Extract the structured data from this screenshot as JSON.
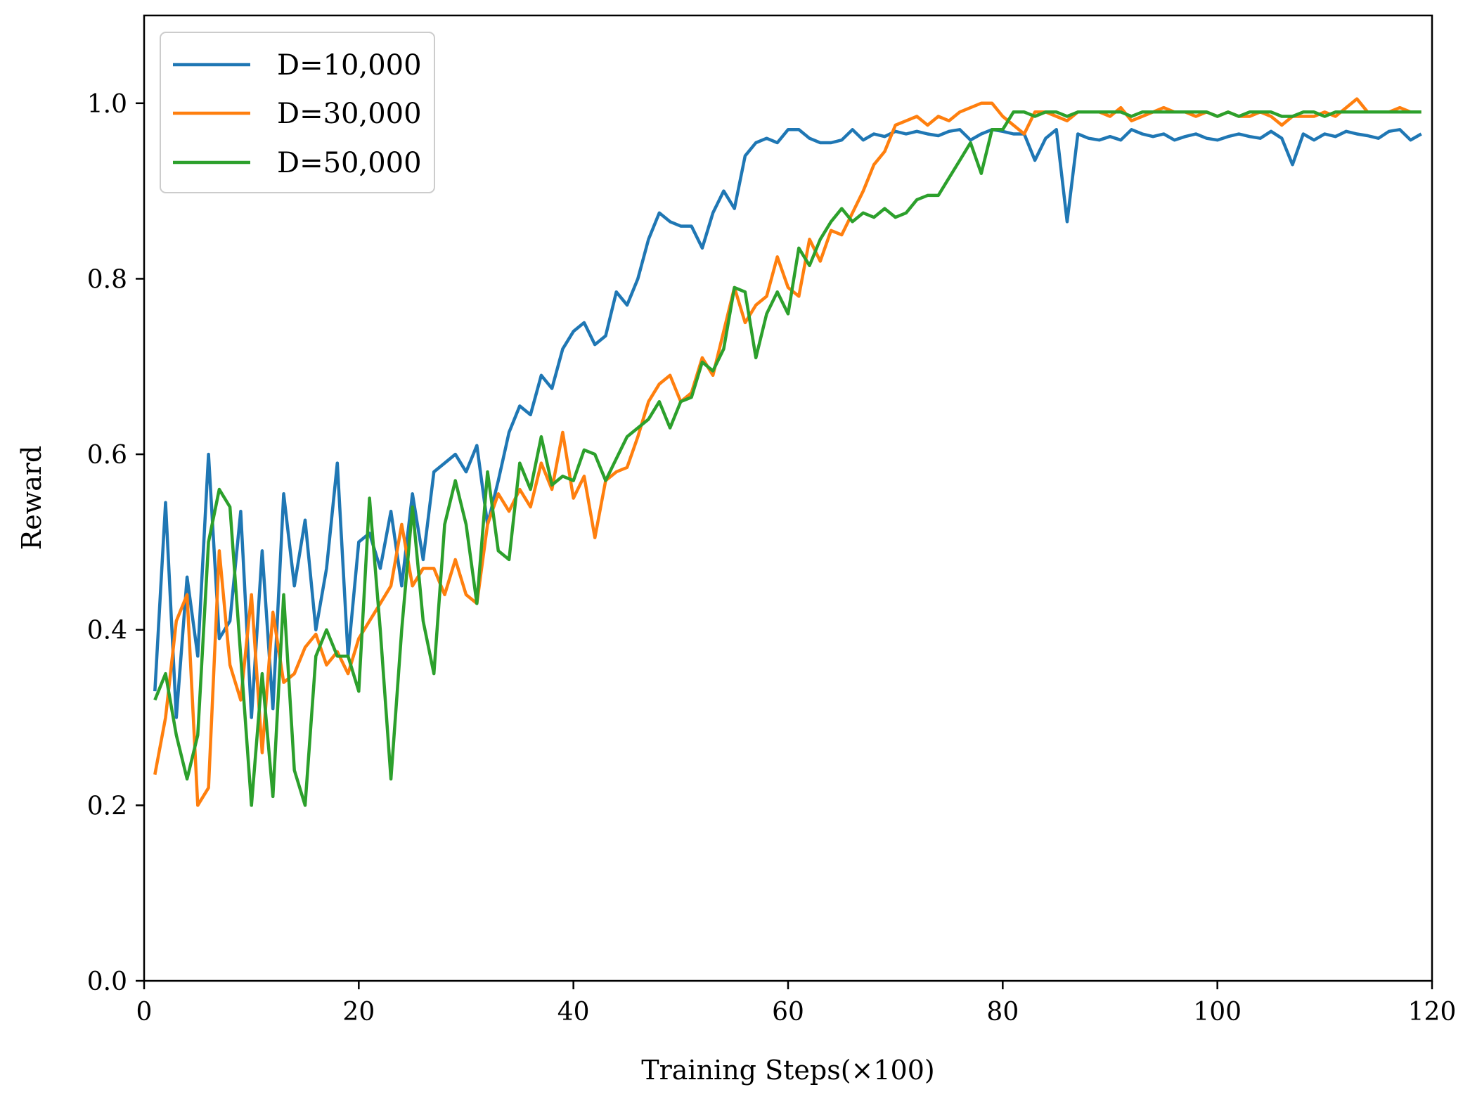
{
  "chart_data": {
    "type": "line",
    "title": "",
    "xlabel": "Training Steps(×100)",
    "ylabel": "Reward",
    "xlim": [
      0,
      120
    ],
    "ylim": [
      0,
      1.1
    ],
    "xticks": [
      0,
      20,
      40,
      60,
      80,
      100,
      120
    ],
    "xtick_labels": [
      "0",
      "20",
      "40",
      "60",
      "80",
      "100",
      "120"
    ],
    "yticks": [
      0.0,
      0.2,
      0.4,
      0.6,
      0.8,
      1.0
    ],
    "ytick_labels": [
      "0.0",
      "0.2",
      "0.4",
      "0.6",
      "0.8",
      "1.0"
    ],
    "grid": false,
    "legend_position": "top-left",
    "x": [
      1,
      2,
      3,
      4,
      5,
      6,
      7,
      8,
      9,
      10,
      11,
      12,
      13,
      14,
      15,
      16,
      17,
      18,
      19,
      20,
      21,
      22,
      23,
      24,
      25,
      26,
      27,
      28,
      29,
      30,
      31,
      32,
      33,
      34,
      35,
      36,
      37,
      38,
      39,
      40,
      41,
      42,
      43,
      44,
      45,
      46,
      47,
      48,
      49,
      50,
      51,
      52,
      53,
      54,
      55,
      56,
      57,
      58,
      59,
      60,
      61,
      62,
      63,
      64,
      65,
      66,
      67,
      68,
      69,
      70,
      71,
      72,
      73,
      74,
      75,
      76,
      77,
      78,
      79,
      80,
      81,
      82,
      83,
      84,
      85,
      86,
      87,
      88,
      89,
      90,
      91,
      92,
      93,
      94,
      95,
      96,
      97,
      98,
      99,
      100,
      101,
      102,
      103,
      104,
      105,
      106,
      107,
      108,
      109,
      110,
      111,
      112,
      113,
      114,
      115,
      116,
      117,
      118,
      119
    ],
    "series": [
      {
        "name": "D=10,000",
        "color": "#1f77b4",
        "values": [
          0.33,
          0.545,
          0.3,
          0.46,
          0.37,
          0.6,
          0.39,
          0.41,
          0.535,
          0.3,
          0.49,
          0.31,
          0.555,
          0.45,
          0.525,
          0.4,
          0.47,
          0.59,
          0.37,
          0.5,
          0.51,
          0.47,
          0.535,
          0.45,
          0.555,
          0.48,
          0.58,
          0.59,
          0.6,
          0.58,
          0.61,
          0.52,
          0.57,
          0.625,
          0.655,
          0.645,
          0.69,
          0.675,
          0.72,
          0.74,
          0.75,
          0.725,
          0.735,
          0.785,
          0.77,
          0.8,
          0.845,
          0.875,
          0.865,
          0.86,
          0.86,
          0.835,
          0.875,
          0.9,
          0.88,
          0.94,
          0.955,
          0.96,
          0.955,
          0.97,
          0.97,
          0.96,
          0.955,
          0.955,
          0.958,
          0.97,
          0.958,
          0.965,
          0.962,
          0.968,
          0.965,
          0.968,
          0.965,
          0.963,
          0.968,
          0.97,
          0.958,
          0.965,
          0.97,
          0.968,
          0.965,
          0.965,
          0.935,
          0.96,
          0.97,
          0.865,
          0.965,
          0.96,
          0.958,
          0.962,
          0.958,
          0.97,
          0.965,
          0.962,
          0.965,
          0.958,
          0.962,
          0.965,
          0.96,
          0.958,
          0.962,
          0.965,
          0.962,
          0.96,
          0.968,
          0.96,
          0.93,
          0.965,
          0.958,
          0.965,
          0.962,
          0.968,
          0.965,
          0.963,
          0.96,
          0.968,
          0.97,
          0.958,
          0.965
        ]
      },
      {
        "name": "D=30,000",
        "color": "#ff7f0e",
        "values": [
          0.235,
          0.3,
          0.41,
          0.44,
          0.2,
          0.22,
          0.49,
          0.36,
          0.32,
          0.44,
          0.26,
          0.42,
          0.34,
          0.35,
          0.38,
          0.395,
          0.36,
          0.375,
          0.35,
          0.39,
          0.41,
          0.43,
          0.45,
          0.52,
          0.45,
          0.47,
          0.47,
          0.44,
          0.48,
          0.44,
          0.43,
          0.52,
          0.555,
          0.535,
          0.56,
          0.54,
          0.59,
          0.56,
          0.625,
          0.55,
          0.575,
          0.505,
          0.57,
          0.58,
          0.585,
          0.62,
          0.66,
          0.68,
          0.69,
          0.66,
          0.67,
          0.71,
          0.69,
          0.74,
          0.79,
          0.75,
          0.77,
          0.78,
          0.825,
          0.79,
          0.78,
          0.845,
          0.82,
          0.855,
          0.85,
          0.875,
          0.9,
          0.93,
          0.945,
          0.975,
          0.98,
          0.985,
          0.975,
          0.985,
          0.98,
          0.99,
          0.995,
          1.0,
          1.0,
          0.985,
          0.975,
          0.965,
          0.99,
          0.99,
          0.985,
          0.98,
          0.99,
          0.99,
          0.99,
          0.985,
          0.995,
          0.98,
          0.985,
          0.99,
          0.995,
          0.99,
          0.99,
          0.985,
          0.99,
          0.985,
          0.99,
          0.985,
          0.985,
          0.99,
          0.985,
          0.975,
          0.985,
          0.985,
          0.985,
          0.99,
          0.985,
          0.995,
          1.005,
          0.99,
          0.99,
          0.99,
          0.995,
          0.99,
          0.99
        ]
      },
      {
        "name": "D=50,000",
        "color": "#2ca02c",
        "values": [
          0.32,
          0.35,
          0.28,
          0.23,
          0.28,
          0.5,
          0.56,
          0.54,
          0.37,
          0.2,
          0.35,
          0.21,
          0.44,
          0.24,
          0.2,
          0.37,
          0.4,
          0.37,
          0.37,
          0.33,
          0.55,
          0.4,
          0.23,
          0.4,
          0.54,
          0.41,
          0.35,
          0.52,
          0.57,
          0.52,
          0.43,
          0.58,
          0.49,
          0.48,
          0.59,
          0.56,
          0.62,
          0.565,
          0.575,
          0.57,
          0.605,
          0.6,
          0.57,
          0.595,
          0.62,
          0.63,
          0.64,
          0.66,
          0.63,
          0.66,
          0.665,
          0.705,
          0.695,
          0.72,
          0.79,
          0.785,
          0.71,
          0.76,
          0.785,
          0.76,
          0.835,
          0.815,
          0.845,
          0.865,
          0.88,
          0.865,
          0.875,
          0.87,
          0.88,
          0.87,
          0.875,
          0.89,
          0.895,
          0.895,
          0.915,
          0.935,
          0.955,
          0.92,
          0.97,
          0.97,
          0.99,
          0.99,
          0.985,
          0.99,
          0.99,
          0.985,
          0.99,
          0.99,
          0.99,
          0.99,
          0.99,
          0.985,
          0.99,
          0.99,
          0.99,
          0.99,
          0.99,
          0.99,
          0.99,
          0.985,
          0.99,
          0.985,
          0.99,
          0.99,
          0.99,
          0.985,
          0.985,
          0.99,
          0.99,
          0.985,
          0.99,
          0.99,
          0.99,
          0.99,
          0.99,
          0.99,
          0.99,
          0.99,
          0.99
        ]
      }
    ]
  }
}
